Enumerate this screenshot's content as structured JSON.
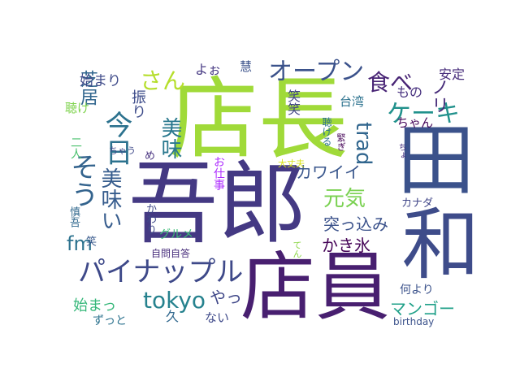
{
  "words": [
    {
      "text": "店長",
      "color": "#a0da39"
    },
    {
      "text": "吾郎",
      "color": "#443983"
    },
    {
      "text": "田",
      "color": "#3b528b"
    },
    {
      "text": "和",
      "color": "#3e4c8a"
    },
    {
      "text": "店員",
      "color": "#481f70"
    },
    {
      "text": "パイナップル",
      "color": "#3e4989"
    },
    {
      "text": "オープン",
      "color": "#3b528b"
    },
    {
      "text": "今日",
      "color": "#2c728e"
    },
    {
      "text": "そう",
      "color": "#33638d"
    },
    {
      "text": "美味い",
      "color": "#365c8d"
    },
    {
      "text": "美味",
      "color": "#2a788e"
    },
    {
      "text": "芝居",
      "color": "#31668e"
    },
    {
      "text": "ケーキ",
      "color": "#21918c"
    },
    {
      "text": "食べ",
      "color": "#482475"
    },
    {
      "text": "元気",
      "color": "#7ad151"
    },
    {
      "text": "さん",
      "color": "#b5de2b"
    },
    {
      "text": "tokyo",
      "color": "#26828e"
    },
    {
      "text": "fm",
      "color": "#2c728e"
    },
    {
      "text": "trad",
      "color": "#31668e"
    },
    {
      "text": "ノリ",
      "color": "#472c7a"
    },
    {
      "text": "カワイイ",
      "color": "#39568c"
    },
    {
      "text": "突っ込み",
      "color": "#3b528b"
    },
    {
      "text": "かき氷",
      "color": "#450457"
    },
    {
      "text": "マンゴー",
      "color": "#1fa088"
    },
    {
      "text": "やっ",
      "color": "#3f4788"
    },
    {
      "text": "始まり",
      "color": "#3e4a89"
    },
    {
      "text": "始まっ",
      "color": "#35b779"
    },
    {
      "text": "振り",
      "color": "#3e4c8a"
    },
    {
      "text": "よぉ",
      "color": "#453882"
    },
    {
      "text": "安定",
      "color": "#472d7b"
    },
    {
      "text": "もの",
      "color": "#46307e"
    },
    {
      "text": "台湾",
      "color": "#2c728e"
    },
    {
      "text": "笑笑",
      "color": "#414487"
    },
    {
      "text": "ちゃん",
      "color": "#46075a"
    },
    {
      "text": "聴け",
      "color": "#7fd34e"
    },
    {
      "text": "二人",
      "color": "#4ac16d"
    },
    {
      "text": "慎吾",
      "color": "#31688e"
    },
    {
      "text": "笑",
      "color": "#38598c"
    },
    {
      "text": "かわり",
      "color": "#3f4889"
    },
    {
      "text": "グルメ",
      "color": "#3bbb75"
    },
    {
      "text": "自問自答",
      "color": "#472d7b"
    },
    {
      "text": "てん",
      "color": "#8bd646"
    },
    {
      "text": "カナダ",
      "color": "#404688"
    },
    {
      "text": "大丈夫",
      "color": "#d8e219"
    },
    {
      "text": "何より",
      "color": "#3b528b"
    },
    {
      "text": "ずっと",
      "color": "#2c728e"
    },
    {
      "text": "久",
      "color": "#31688e"
    },
    {
      "text": "ない",
      "color": "#3e4989"
    },
    {
      "text": "birthday",
      "color": "#3b528b"
    },
    {
      "text": "聴ける",
      "color": "#2c728e"
    },
    {
      "text": "お仕事",
      "color": "#ad2bff"
    },
    {
      "text": "ちゃう",
      "color": "#3e4989"
    },
    {
      "text": "め",
      "color": "#46307e"
    },
    {
      "text": "慧",
      "color": "#3b528b"
    },
    {
      "text": "ちょ",
      "color": "#46307e"
    },
    {
      "text": "緊ぎ",
      "color": "#450457"
    }
  ]
}
